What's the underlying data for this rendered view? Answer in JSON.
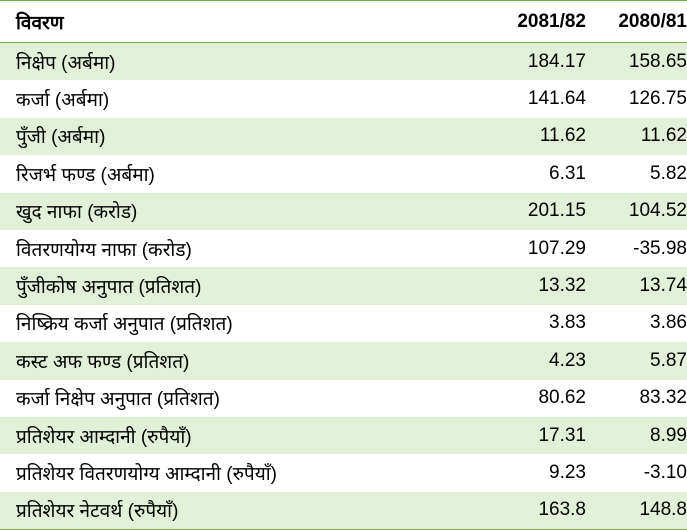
{
  "table": {
    "header": [
      "विवरण",
      "2081/82",
      "2080/81"
    ],
    "rows": [
      [
        "निक्षेप (अर्बमा)",
        "184.17",
        "158.65"
      ],
      [
        "कर्जा (अर्बमा)",
        "141.64",
        "126.75"
      ],
      [
        "पुँजी (अर्बमा)",
        "11.62",
        "11.62"
      ],
      [
        "रिजर्भ फण्ड (अर्बमा)",
        "6.31",
        "5.82"
      ],
      [
        "खुद नाफा (करोड)",
        "201.15",
        "104.52"
      ],
      [
        "वितरणयोग्य नाफा (करोड)",
        "107.29",
        "-35.98"
      ],
      [
        "पुँजीकोष अनुपात (प्रतिशत)",
        "13.32",
        "13.74"
      ],
      [
        "निष्क्रिय कर्जा अनुपात (प्रतिशत)",
        "3.83",
        "3.86"
      ],
      [
        "कस्ट अफ फण्ड (प्रतिशत)",
        "4.23",
        "5.87"
      ],
      [
        "कर्जा निक्षेप अनुपात (प्रतिशत)",
        "80.62",
        "83.32"
      ],
      [
        "प्रतिशेयर आम्दानी (रुपैयाँ)",
        "17.31",
        "8.99"
      ],
      [
        "प्रतिशेयर वितरणयोग्य आम्दानी (रुपैयाँ)",
        "9.23",
        "-3.10"
      ],
      [
        "प्रतिशेयर नेटवर्थ (रुपैयाँ)",
        "163.8",
        "148.8"
      ]
    ]
  }
}
